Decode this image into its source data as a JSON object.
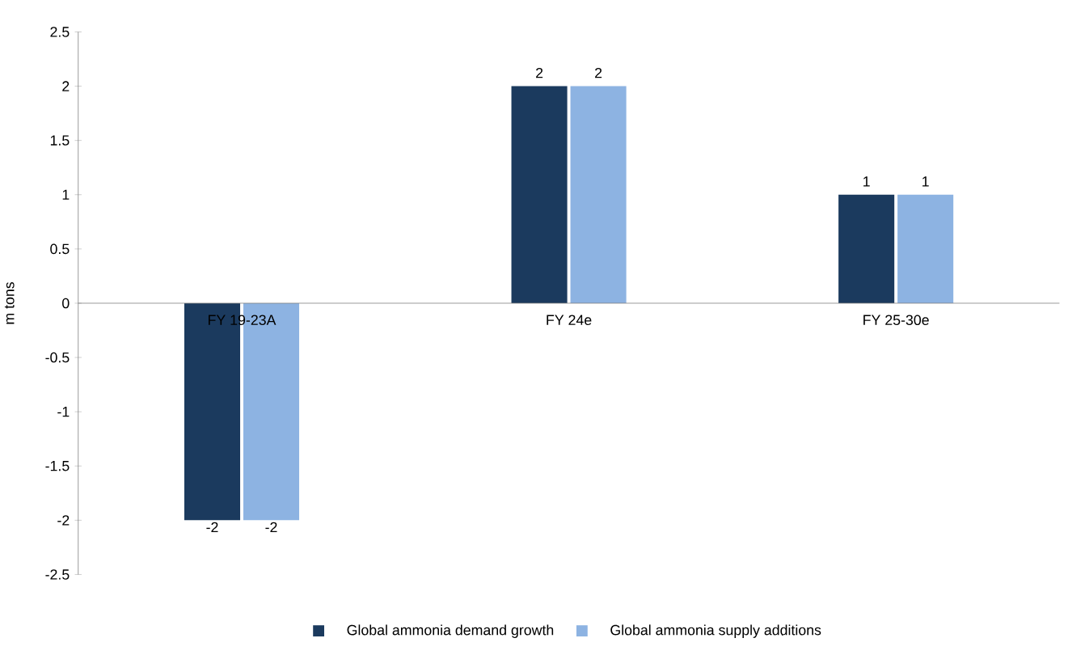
{
  "chart_data": {
    "type": "bar",
    "ylabel": "m tons",
    "categories": [
      "FY 19-23A",
      "FY 24e",
      "FY 25-30e"
    ],
    "series": [
      {
        "name": "Global ammonia demand growth",
        "color": "#1b3a5e",
        "values": [
          -2,
          2,
          1
        ]
      },
      {
        "name": "Global ammonia supply additions",
        "color": "#8db3e2",
        "values": [
          -2,
          2,
          1
        ]
      }
    ],
    "ylim": [
      -2.5,
      2.5
    ],
    "yticks": [
      -2.5,
      -2,
      -1.5,
      -1,
      -0.5,
      0,
      0.5,
      1,
      1.5,
      2,
      2.5
    ],
    "data_labels": true,
    "legend": "bottom",
    "grid": false
  }
}
